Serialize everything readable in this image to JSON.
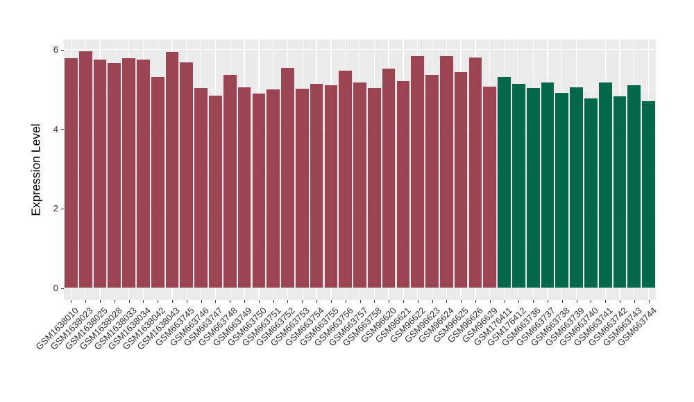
{
  "chart_data": {
    "type": "bar",
    "title": "",
    "xlabel": "",
    "ylabel": "Expression Level",
    "ylim": [
      0,
      6.25
    ],
    "yticks": [
      0,
      2,
      4,
      6
    ],
    "minor_gridlines": [
      1,
      3,
      5
    ],
    "grid_on": true,
    "legend_position": "none",
    "panel_bg": "#EBEBEB",
    "grid_major_color": "#FFFFFF",
    "grid_minor_color": "#F5F5F5",
    "tick_color": "#333333",
    "categories": [
      "GSM1638010",
      "GSM1638023",
      "GSM1638025",
      "GSM1638028",
      "GSM1638033",
      "GSM1638034",
      "GSM1638042",
      "GSM1638043",
      "GSM663745",
      "GSM663746",
      "GSM663747",
      "GSM663748",
      "GSM663749",
      "GSM663750",
      "GSM663751",
      "GSM663752",
      "GSM663753",
      "GSM663754",
      "GSM663755",
      "GSM663756",
      "GSM663757",
      "GSM663758",
      "GSM96620",
      "GSM96621",
      "GSM96622",
      "GSM96623",
      "GSM96624",
      "GSM96625",
      "GSM96626",
      "GSM96629",
      "GSM176411",
      "GSM176412",
      "GSM663736",
      "GSM663737",
      "GSM663738",
      "GSM663739",
      "GSM663740",
      "GSM663741",
      "GSM663742",
      "GSM663743",
      "GSM663744"
    ],
    "values": [
      5.78,
      5.96,
      5.75,
      5.66,
      5.78,
      5.75,
      5.32,
      5.94,
      5.68,
      5.03,
      4.84,
      5.36,
      5.05,
      4.89,
      4.99,
      5.54,
      5.01,
      5.14,
      5.1,
      5.46,
      5.18,
      5.04,
      5.52,
      5.21,
      5.83,
      5.36,
      5.83,
      5.43,
      5.8,
      5.07,
      5.32,
      5.14,
      5.03,
      5.18,
      4.91,
      5.05,
      4.77,
      5.18,
      4.82,
      5.1,
      4.7
    ],
    "groups": [
      {
        "name": "maroon-group",
        "color": "#9C4552",
        "count": 30
      },
      {
        "name": "green-group",
        "color": "#016849",
        "count": 11
      }
    ]
  }
}
